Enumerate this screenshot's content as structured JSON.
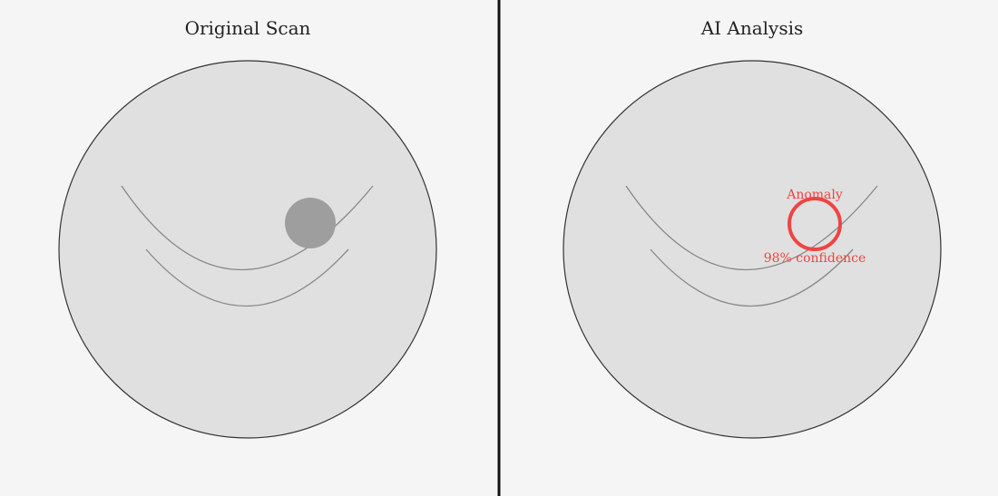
{
  "panels": {
    "left": {
      "title": "Original Scan"
    },
    "right": {
      "title": "AI Analysis",
      "annotation": {
        "label": "Anomaly",
        "confidence": "98% confidence"
      }
    }
  },
  "colors": {
    "background": "#f5f5f5",
    "scan_fill": "#e0e0e0",
    "scan_stroke": "#333333",
    "curve_stroke": "#888888",
    "lesion_fill": "#9e9e9e",
    "highlight": "#ef4444",
    "divider": "#111111"
  }
}
